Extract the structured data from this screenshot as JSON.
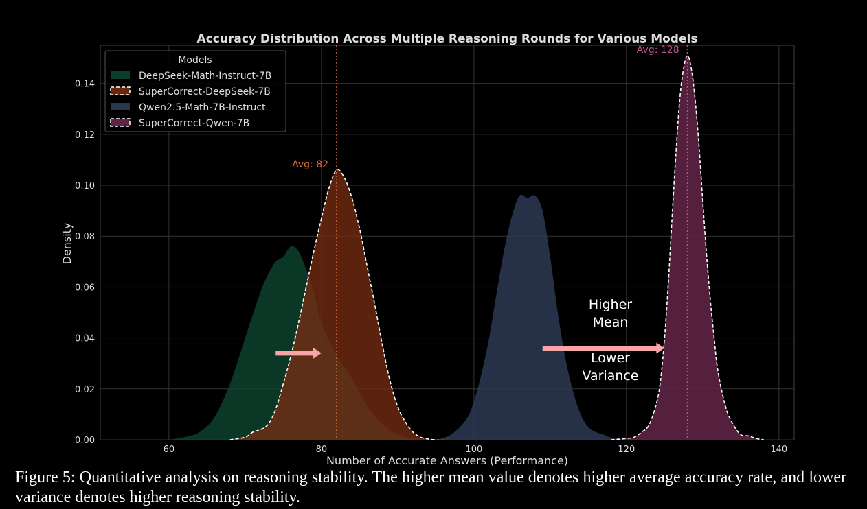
{
  "chart_data": {
    "type": "area",
    "title": "Accuracy Distribution Across Multiple Reasoning Rounds for Various Models",
    "xlabel": "Number of Accurate Answers (Performance)",
    "ylabel": "Density",
    "xlim": [
      51,
      142
    ],
    "ylim": [
      0,
      0.155
    ],
    "xticks": [
      60,
      80,
      100,
      120,
      140
    ],
    "yticks": [
      0.0,
      0.02,
      0.04,
      0.06,
      0.08,
      0.1,
      0.12,
      0.14
    ],
    "xtick_labels": [
      "60",
      "80",
      "100",
      "120",
      "140"
    ],
    "ytick_labels": [
      "0.00",
      "0.02",
      "0.04",
      "0.06",
      "0.08",
      "0.10",
      "0.12",
      "0.14"
    ],
    "grid": true,
    "legend": {
      "title": "Models",
      "placement": "top-left",
      "entries": [
        "DeepSeek-Math-Instruct-7B",
        "SuperCorrect-DeepSeek-7B",
        "Qwen2.5-Math-7B-Instruct",
        "SuperCorrect-Qwen-7B"
      ]
    },
    "series": [
      {
        "name": "DeepSeek-Math-Instruct-7B",
        "color": "#0e4a33",
        "opacity": 0.75,
        "dashed_outline": false,
        "x": [
          60,
          62,
          64,
          66,
          68,
          70,
          72,
          73,
          74,
          75,
          76,
          77,
          78,
          79,
          80,
          82,
          84,
          86,
          88,
          90,
          92,
          94,
          95
        ],
        "y": [
          0.0,
          0.001,
          0.003,
          0.009,
          0.022,
          0.04,
          0.058,
          0.065,
          0.07,
          0.072,
          0.076,
          0.074,
          0.067,
          0.058,
          0.046,
          0.033,
          0.024,
          0.013,
          0.006,
          0.002,
          0.0005,
          0.0,
          0.0
        ]
      },
      {
        "name": "SuperCorrect-DeepSeek-7B",
        "color": "#7a2e13",
        "opacity": 0.75,
        "dashed_outline": true,
        "mean": 82,
        "mean_label": "Avg: 82",
        "mean_color": "#e0703a",
        "x": [
          68,
          70,
          71,
          72,
          73,
          74,
          75,
          76,
          77,
          78,
          79,
          80,
          81,
          82,
          83,
          84,
          85,
          86,
          87,
          88,
          89,
          90,
          91,
          92,
          93,
          94,
          95,
          96
        ],
        "y": [
          0.0,
          0.001,
          0.003,
          0.004,
          0.006,
          0.012,
          0.022,
          0.033,
          0.046,
          0.06,
          0.074,
          0.087,
          0.099,
          0.106,
          0.103,
          0.095,
          0.083,
          0.068,
          0.053,
          0.037,
          0.023,
          0.013,
          0.007,
          0.003,
          0.001,
          0.0003,
          0.0,
          0.0
        ]
      },
      {
        "name": "Qwen2.5-Math-7B-Instruct",
        "color": "#2d3a55",
        "opacity": 0.85,
        "dashed_outline": false,
        "x": [
          95,
          97,
          99,
          100,
          101,
          102,
          103,
          104,
          105,
          106,
          107,
          108,
          109,
          110,
          111,
          112,
          113,
          114,
          115,
          116,
          117,
          118,
          119,
          120
        ],
        "y": [
          0.0,
          0.002,
          0.008,
          0.015,
          0.026,
          0.04,
          0.058,
          0.075,
          0.088,
          0.096,
          0.095,
          0.096,
          0.09,
          0.072,
          0.05,
          0.032,
          0.019,
          0.01,
          0.005,
          0.003,
          0.002,
          0.0008,
          0.0002,
          0.0
        ]
      },
      {
        "name": "SuperCorrect-Qwen-7B",
        "color": "#5e2445",
        "opacity": 0.9,
        "dashed_outline": true,
        "mean": 128,
        "mean_label": "Avg: 128",
        "mean_color": "#c0508e",
        "x": [
          118,
          120,
          121,
          122,
          123,
          124,
          124.5,
          125,
          125.5,
          126,
          126.5,
          127,
          127.5,
          128,
          128.5,
          129,
          129.5,
          130,
          130.5,
          131,
          131.5,
          132,
          133,
          134,
          135,
          136,
          137,
          138
        ],
        "y": [
          0.0,
          0.0005,
          0.001,
          0.003,
          0.006,
          0.015,
          0.024,
          0.04,
          0.062,
          0.088,
          0.113,
          0.134,
          0.146,
          0.151,
          0.146,
          0.134,
          0.116,
          0.094,
          0.073,
          0.055,
          0.04,
          0.027,
          0.013,
          0.006,
          0.002,
          0.0015,
          0.0005,
          0.0
        ]
      }
    ],
    "annotations": [
      {
        "type": "arrow",
        "x_from": 74,
        "x_to": 80,
        "y": 0.034
      },
      {
        "type": "arrow",
        "x_from": 109,
        "x_to": 125,
        "y": 0.036
      },
      {
        "type": "text",
        "text": "Higher\nMean",
        "x": 117.9,
        "y": 0.048
      },
      {
        "type": "text",
        "text": "Lower\nVariance",
        "x": 117.9,
        "y": 0.027
      }
    ],
    "arrow_color": "#f7a5a5"
  },
  "caption": "Figure 5: Quantitative analysis on reasoning stability. The higher mean value denotes higher average accuracy rate, and lower variance denotes higher reasoning stability."
}
